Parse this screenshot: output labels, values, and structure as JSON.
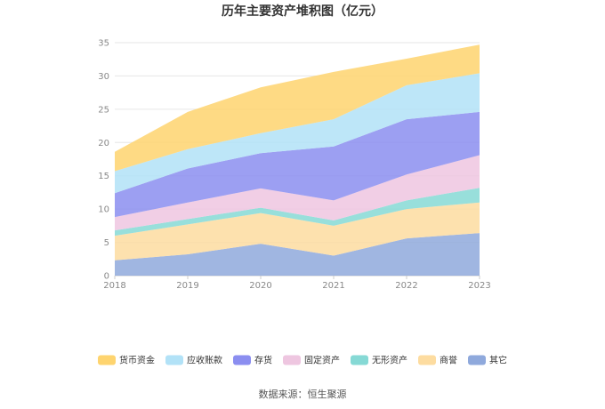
{
  "chart_data": {
    "type": "area",
    "stacked": true,
    "title": "历年主要资产堆积图（亿元）",
    "x": [
      "2018",
      "2019",
      "2020",
      "2021",
      "2022",
      "2023"
    ],
    "ylim": [
      0,
      35
    ],
    "yticks": [
      0,
      5,
      10,
      15,
      20,
      25,
      30,
      35
    ],
    "grid": true,
    "legend_position": "bottom",
    "series": [
      {
        "name": "其它",
        "color": "#8fa9dc",
        "values": [
          2.3,
          3.2,
          4.8,
          3.0,
          5.6,
          6.4
        ]
      },
      {
        "name": "商誉",
        "color": "#fddca0",
        "values": [
          3.7,
          4.5,
          4.6,
          4.5,
          4.4,
          4.6
        ]
      },
      {
        "name": "无形资产",
        "color": "#86d9d5",
        "values": [
          0.8,
          0.8,
          0.8,
          0.8,
          1.3,
          2.2
        ]
      },
      {
        "name": "固定资产",
        "color": "#eec6e0",
        "values": [
          2.0,
          2.5,
          2.9,
          3.0,
          3.9,
          4.9
        ]
      },
      {
        "name": "存货",
        "color": "#8b8ef0",
        "values": [
          3.6,
          5.1,
          5.3,
          8.1,
          8.3,
          6.5
        ]
      },
      {
        "name": "应收账款",
        "color": "#b2e2f7",
        "values": [
          3.3,
          2.9,
          3.0,
          4.1,
          5.1,
          5.8
        ]
      },
      {
        "name": "货币资金",
        "color": "#fed46f",
        "values": [
          2.9,
          5.6,
          6.9,
          7.1,
          4.0,
          4.3
        ]
      }
    ],
    "legend_order": [
      "货币资金",
      "应收账款",
      "存货",
      "固定资产",
      "无形资产",
      "商誉",
      "其它"
    ]
  },
  "source_text": "数据来源：恒生聚源"
}
